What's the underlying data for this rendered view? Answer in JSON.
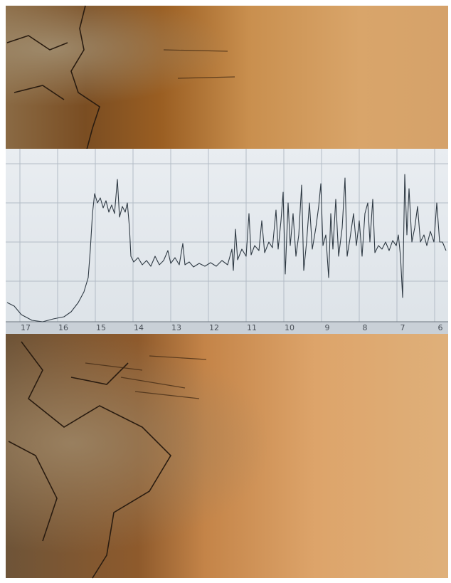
{
  "ruler": {
    "labels": [
      "17",
      "16",
      "15",
      "14",
      "13",
      "12",
      "11",
      "10",
      "9",
      "8",
      "7",
      "6"
    ]
  }
}
